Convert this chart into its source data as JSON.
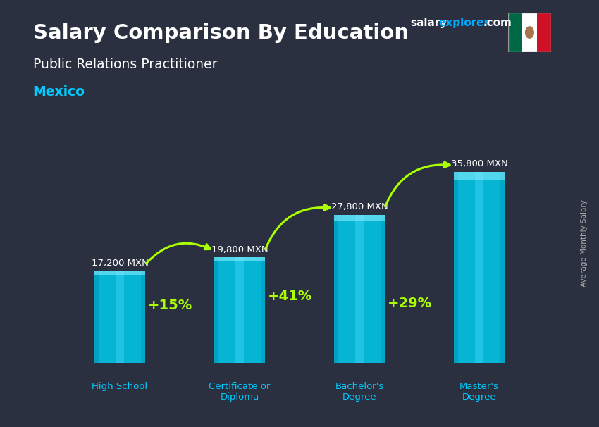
{
  "title_salary": "Salary Comparison By Education",
  "subtitle_job": "Public Relations Practitioner",
  "subtitle_country": "Mexico",
  "ylabel": "Average Monthly Salary",
  "website_salary": "salary",
  "website_explorer": "explorer",
  "website_com": ".com",
  "categories": [
    "High School",
    "Certificate or\nDiploma",
    "Bachelor's\nDegree",
    "Master's\nDegree"
  ],
  "values": [
    17200,
    19800,
    27800,
    35800
  ],
  "value_labels": [
    "17,200 MXN",
    "19,800 MXN",
    "27,800 MXN",
    "35,800 MXN"
  ],
  "pct_changes": [
    "+15%",
    "+41%",
    "+29%"
  ],
  "bar_color_main": "#00c8e8",
  "bar_color_light": "#55e0ff",
  "bar_color_dark": "#0099bb",
  "background_color": "#2a3040",
  "arrow_color": "#aaff00",
  "title_color": "#ffffff",
  "subtitle_color": "#ffffff",
  "country_color": "#00ccff",
  "value_label_color": "#ffffff",
  "cat_label_color": "#00ccff",
  "ylabel_color": "#aaaaaa",
  "website_salary_color": "#ffffff",
  "website_explorer_color": "#00aaff",
  "ylim": [
    0,
    44000
  ],
  "figsize": [
    8.5,
    6.06
  ],
  "dpi": 100
}
